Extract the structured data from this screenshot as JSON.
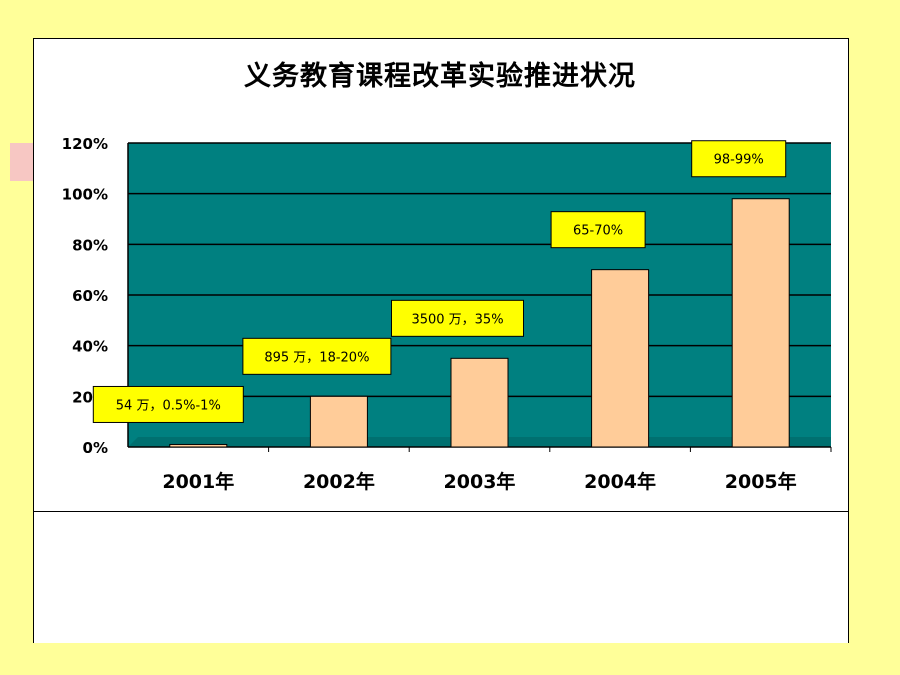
{
  "colors": {
    "page_background": "#ffff99",
    "plot_background": "#008080",
    "bar_fill": "#ffcc99",
    "label_fill": "#ffff00",
    "accent_block": "#f7c7c3"
  },
  "chart_data": {
    "type": "bar",
    "title": "义务教育课程改革实验推进状况",
    "categories": [
      "2001年",
      "2002年",
      "2003年",
      "2004年",
      "2005年"
    ],
    "values": [
      0.01,
      0.2,
      0.35,
      0.7,
      0.98
    ],
    "data_labels": [
      "54 万，0.5%-1%",
      "895 万，18-20%",
      "3500 万，35%",
      "65-70%",
      "98-99%"
    ],
    "y_ticks": [
      "0%",
      "20%",
      "40%",
      "60%",
      "80%",
      "100%",
      "120%"
    ],
    "ylim": [
      0,
      1.2
    ],
    "grid": true,
    "legend": "none"
  }
}
